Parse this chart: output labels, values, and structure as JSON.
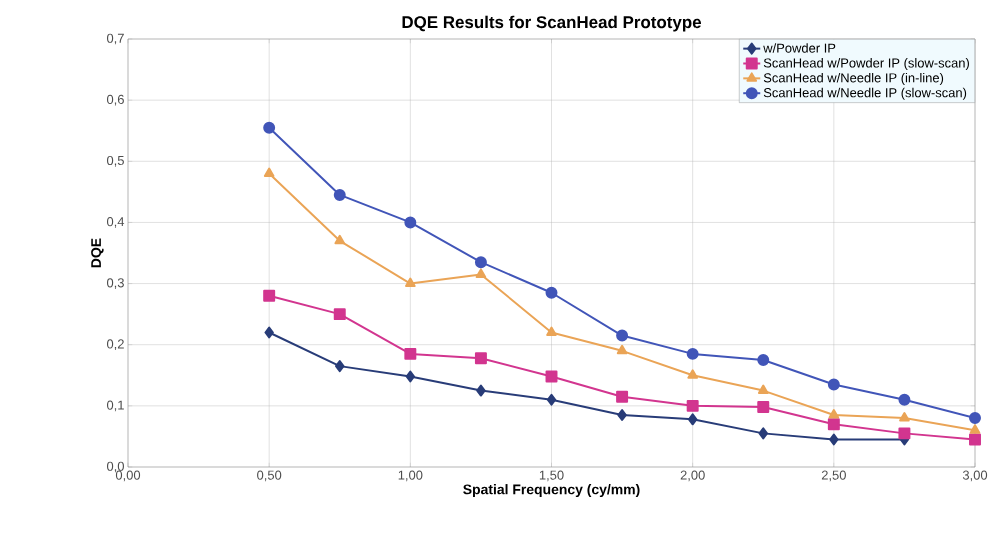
{
  "chart_data": {
    "type": "line",
    "title": "DQE Results for ScanHead Prototype",
    "xlabel": "Spatial Frequency (cy/mm)",
    "ylabel": "DQE",
    "x": [
      0.5,
      0.75,
      1.0,
      1.25,
      1.5,
      1.75,
      2.0,
      2.25,
      2.5,
      2.75,
      3.0
    ],
    "series": [
      {
        "name": "w/Powder IP",
        "color": "#283c78",
        "marker": "diamond",
        "values": [
          0.22,
          0.165,
          0.148,
          0.125,
          0.11,
          0.085,
          0.078,
          0.055,
          0.045,
          0.045,
          null
        ]
      },
      {
        "name": "ScanHead w/Powder IP (slow-scan)",
        "color": "#d2358f",
        "marker": "square",
        "values": [
          0.28,
          0.25,
          0.185,
          0.178,
          0.148,
          0.115,
          0.1,
          0.098,
          0.07,
          0.055,
          0.045
        ]
      },
      {
        "name": "ScanHead w/Needle IP (in-line)",
        "color": "#eaa456",
        "marker": "triangle",
        "values": [
          0.48,
          0.37,
          0.3,
          0.315,
          0.22,
          0.19,
          0.15,
          0.125,
          0.085,
          0.08,
          0.06
        ]
      },
      {
        "name": "ScanHead w/Needle IP (slow-scan)",
        "color": "#4155b8",
        "marker": "circle",
        "values": [
          0.555,
          0.445,
          0.4,
          0.335,
          0.285,
          0.215,
          0.185,
          0.175,
          0.135,
          0.11,
          0.08
        ]
      }
    ],
    "xlim": [
      0,
      3
    ],
    "xticks": [
      {
        "value": 0,
        "label": "0,00"
      },
      {
        "value": 0.5,
        "label": "0,50"
      },
      {
        "value": 1,
        "label": "1,00"
      },
      {
        "value": 1.5,
        "label": "1,50"
      },
      {
        "value": 2,
        "label": "2,00"
      },
      {
        "value": 2.5,
        "label": "2,50"
      },
      {
        "value": 3,
        "label": "3,00"
      }
    ],
    "ylim": [
      0,
      0.7
    ],
    "yticks": [
      {
        "value": 0,
        "label": "0,0"
      },
      {
        "value": 0.1,
        "label": "0,1"
      },
      {
        "value": 0.2,
        "label": "0,2"
      },
      {
        "value": 0.3,
        "label": "0,3"
      },
      {
        "value": 0.4,
        "label": "0,4"
      },
      {
        "value": 0.5,
        "label": "0,5"
      },
      {
        "value": 0.6,
        "label": "0,6"
      },
      {
        "value": 0.7,
        "label": "0,7"
      }
    ],
    "grid": true,
    "legend": "top right",
    "line_style": "solid"
  }
}
